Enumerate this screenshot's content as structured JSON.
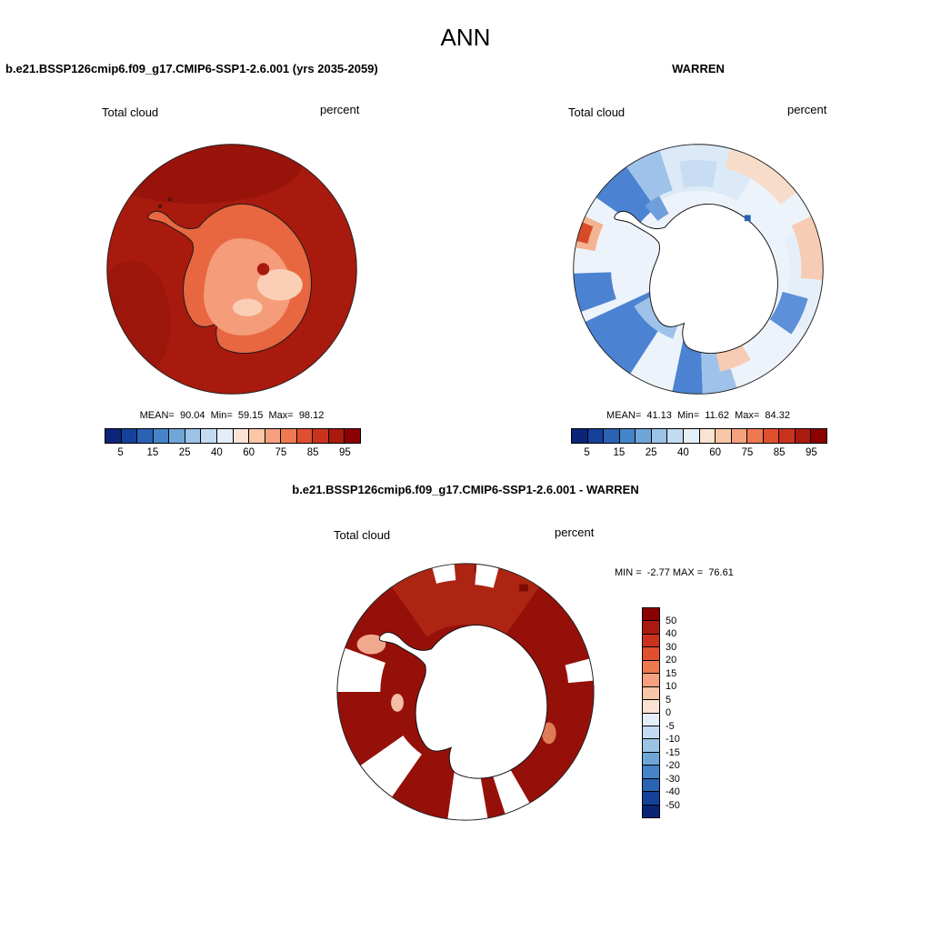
{
  "figure_title": "ANN",
  "panels": {
    "model": {
      "title": "b.e21.BSSP126cmip6.f09_g17.CMIP6-SSP1-2.6.001 (yrs 2035-2059)",
      "field": "Total cloud",
      "units": "percent",
      "stats": "MEAN=  90.04  Min=  59.15  Max=  98.12"
    },
    "obs": {
      "title": "WARREN",
      "field": "Total cloud",
      "units": "percent",
      "stats": "MEAN=  41.13  Min=  11.62  Max=  84.32"
    },
    "diff": {
      "title": "b.e21.BSSP126cmip6.f09_g17.CMIP6-SSP1-2.6.001 - WARREN",
      "field": "Total cloud",
      "units": "percent",
      "stats": "MIN =  -2.77 MAX =  76.61"
    }
  },
  "colorbars": {
    "abs": {
      "colors": [
        "#0a2578",
        "#16419b",
        "#2a62b4",
        "#4584c8",
        "#6fa6d8",
        "#9cc3e6",
        "#c3dbf1",
        "#e3eef9",
        "#fbe3d4",
        "#f9c6a8",
        "#f5a07e",
        "#ee7951",
        "#e04f30",
        "#c9331e",
        "#ab1a0e",
        "#8b0000"
      ],
      "ticks": [
        "5",
        "15",
        "25",
        "40",
        "60",
        "75",
        "85",
        "95"
      ]
    },
    "diff": {
      "colors": [
        "#8b0000",
        "#ab1a0e",
        "#c9331e",
        "#e04f30",
        "#ee7951",
        "#f5a07e",
        "#f9c6a8",
        "#fbe3d4",
        "#e3eef9",
        "#c3dbf1",
        "#9cc3e6",
        "#6fa6d8",
        "#4584c8",
        "#2a62b4",
        "#16419b",
        "#0a2578"
      ],
      "ticks": [
        "50",
        "40",
        "30",
        "20",
        "15",
        "10",
        "5",
        "0",
        "-5",
        "-10",
        "-15",
        "-20",
        "-30",
        "-40",
        "-50"
      ]
    }
  },
  "chart_data": [
    {
      "type": "heatmap",
      "projection": "south-polar-stereographic",
      "title": "b.e21.BSSP126cmip6.f09_g17.CMIP6-SSP1-2.6.001 (yrs 2035-2059)",
      "variable": "Total cloud",
      "units": "percent",
      "stats": {
        "mean": 90.04,
        "min": 59.15,
        "max": 98.12
      },
      "levels": [
        0,
        5,
        10,
        15,
        20,
        25,
        30,
        40,
        50,
        60,
        70,
        75,
        80,
        85,
        90,
        95,
        100
      ],
      "tick_labels": [
        5,
        15,
        25,
        40,
        60,
        75,
        85,
        95
      ],
      "legend_position": "bottom",
      "description": "Ocean nearly uniform dark red (90-95%); Antarctic continent lighter orange/salmon (60-85%) with pale patches near 59-65% and one small dark spot"
    },
    {
      "type": "heatmap",
      "projection": "south-polar-stereographic",
      "title": "WARREN",
      "variable": "Total cloud",
      "units": "percent",
      "stats": {
        "mean": 41.13,
        "min": 11.62,
        "max": 84.32
      },
      "levels": [
        0,
        5,
        10,
        15,
        20,
        25,
        30,
        40,
        50,
        60,
        70,
        75,
        80,
        85,
        90,
        95,
        100
      ],
      "tick_labels": [
        5,
        15,
        25,
        40,
        60,
        75,
        85,
        95
      ],
      "legend_position": "bottom",
      "description": "Mostly white/pale blue (40-50%); blue radial wedges (15-30%) left, bottom-left and bottom; salmon bands (60-75%) along right and top-right rim; small red spot (~80%) at left rim; continent blank"
    },
    {
      "type": "heatmap",
      "projection": "south-polar-stereographic",
      "title": "b.e21.BSSP126cmip6.f09_g17.CMIP6-SSP1-2.6.001 - WARREN",
      "variable": "Total cloud",
      "units": "percent",
      "stats": {
        "min": -2.77,
        "max": 76.61
      },
      "levels": [
        -50,
        -40,
        -30,
        -20,
        -15,
        -10,
        -5,
        0,
        5,
        10,
        15,
        20,
        30,
        40,
        50
      ],
      "tick_labels": [
        50,
        40,
        30,
        20,
        15,
        10,
        5,
        0,
        -5,
        -10,
        -15,
        -20,
        -30,
        -40,
        -50
      ],
      "legend_position": "right",
      "description": "Difference map: ocean nearly everywhere dark red (>50); white blocks where obs missing; a few salmon patches (10-20) near coast; continent blank"
    }
  ]
}
